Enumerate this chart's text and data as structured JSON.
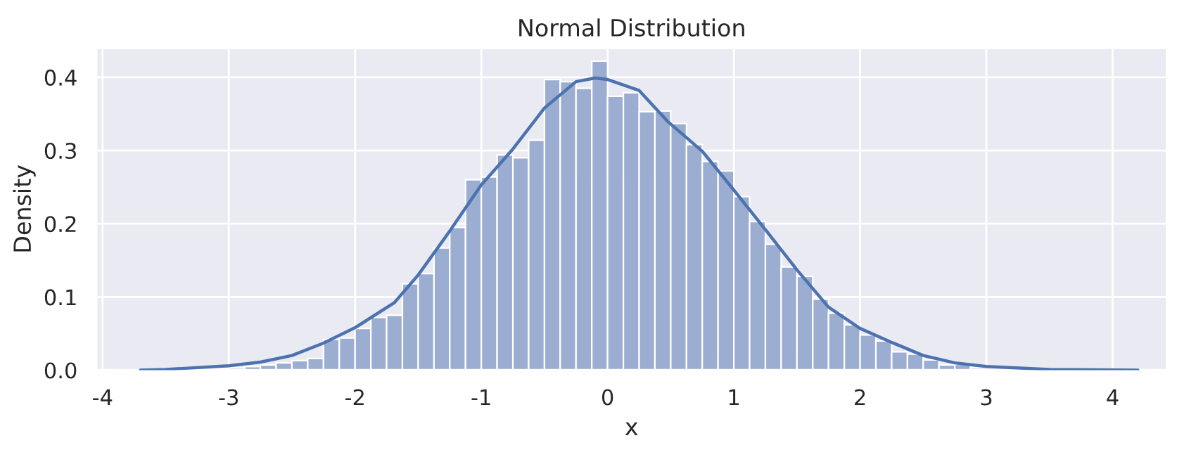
{
  "chart_data": {
    "type": "histogram",
    "title": "Normal Distribution",
    "xlabel": "x",
    "ylabel": "Density",
    "xlim": [
      -4.05,
      4.43
    ],
    "xticks": [
      -4,
      -3,
      -2,
      -1,
      0,
      1,
      2,
      3,
      4
    ],
    "ylim": [
      0,
      0.44
    ],
    "yticks": [
      {
        "value": 0,
        "label": "0.0"
      },
      0.1,
      0.2,
      0.3,
      0.4
    ],
    "grid": true,
    "legend": false,
    "series": [
      {
        "color": "#9badd0",
        "bins": [
          -3.75,
          -3.625,
          -3.5,
          -3.375,
          -3.25,
          -3.125,
          -3.0,
          -2.875,
          -2.75,
          -2.625,
          -2.5,
          -2.375,
          -2.25,
          -2.125,
          -2.0,
          -1.875,
          -1.75,
          -1.625,
          -1.5,
          -1.375,
          -1.25,
          -1.125,
          -1.0,
          -0.875,
          -0.75,
          -0.625,
          -0.5,
          -0.375,
          -0.25,
          -0.125,
          0.0,
          0.125,
          0.25,
          0.375,
          0.5,
          0.625,
          0.75,
          0.875,
          1.0,
          1.125,
          1.25,
          1.375,
          1.5,
          1.625,
          1.75,
          1.875,
          2.0,
          2.125,
          2.25,
          2.375,
          2.5,
          2.625,
          2.75,
          2.875,
          3.0,
          3.125,
          3.25,
          3.375,
          3.5,
          3.625,
          3.75,
          3.875,
          4.0,
          4.125,
          4.25
        ],
        "values": [
          0,
          0,
          0.001,
          0.001,
          null,
          0.002,
          0.003,
          0.005,
          0.007,
          0.01,
          0.013,
          0.016,
          0.042,
          0.044,
          0.057,
          0.072,
          0.075,
          0.118,
          0.132,
          0.167,
          0.195,
          0.26,
          0.264,
          0.294,
          0.29,
          0.314,
          0.397,
          0.394,
          0.385,
          0.422,
          0.374,
          0.379,
          0.353,
          0.354,
          0.337,
          0.308,
          0.285,
          0.272,
          0.237,
          0.203,
          0.172,
          0.141,
          0.128,
          0.097,
          0.078,
          0.062,
          0.048,
          0.04,
          0.025,
          0.022,
          0.014,
          0.007,
          0.008,
          0.003,
          null,
          0.001,
          0,
          0.001,
          0,
          0,
          0,
          0,
          0,
          null
        ]
      },
      {
        "type": "line",
        "color": "#4c72b0",
        "x": [
          -3.7,
          -3.5,
          -3.0,
          -2.75,
          -2.5,
          -2.25,
          -2.0,
          -1.69,
          -1.5,
          -1.25,
          -1.0,
          -0.75,
          -0.5,
          -0.25,
          -0.1,
          0.0,
          0.25,
          0.48,
          0.75,
          1.0,
          1.25,
          1.5,
          1.75,
          2.0,
          2.25,
          2.5,
          2.75,
          3.0,
          3.5,
          4.2
        ],
        "values": [
          0.0,
          0.001,
          0.006,
          0.011,
          0.02,
          0.037,
          0.058,
          0.092,
          0.13,
          0.19,
          0.253,
          0.302,
          0.358,
          0.394,
          0.399,
          0.397,
          0.382,
          0.339,
          0.299,
          0.246,
          0.192,
          0.137,
          0.086,
          0.057,
          0.038,
          0.02,
          0.01,
          0.005,
          0.001,
          0.0
        ]
      }
    ]
  }
}
